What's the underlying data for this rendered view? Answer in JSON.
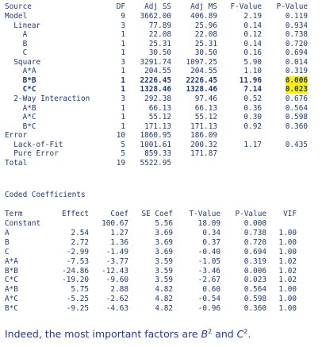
{
  "anova": {
    "headers": {
      "source": "Source",
      "df": "DF",
      "adj_ss": "Adj SS",
      "adj_ms": "Adj MS",
      "f_value": "F-Value",
      "p_value": "P-Value"
    },
    "rows": [
      {
        "source": "Model",
        "df": "9",
        "ss": "3662.00",
        "ms": "406.89",
        "f": "2.19",
        "p": "0.119"
      },
      {
        "source": "  Linear",
        "df": "3",
        "ss": "77.89",
        "ms": "25.96",
        "f": "0.14",
        "p": "0.934"
      },
      {
        "source": "    A",
        "df": "1",
        "ss": "22.08",
        "ms": "22.08",
        "f": "0.12",
        "p": "0.738"
      },
      {
        "source": "    B",
        "df": "1",
        "ss": "25.31",
        "ms": "25.31",
        "f": "0.14",
        "p": "0.720"
      },
      {
        "source": "    C",
        "df": "1",
        "ss": "30.50",
        "ms": "30.50",
        "f": "0.16",
        "p": "0.694"
      },
      {
        "source": "  Square",
        "df": "3",
        "ss": "3291.74",
        "ms": "1097.25",
        "f": "5.90",
        "p": "0.014"
      },
      {
        "source": "    A*A",
        "df": "1",
        "ss": "204.55",
        "ms": "204.55",
        "f": "1.10",
        "p": "0.319"
      },
      {
        "source": "    B*B",
        "df": "1",
        "ss": "2226.45",
        "ms": "2226.45",
        "f": "11.96",
        "p": "0.006"
      },
      {
        "source": "    C*C",
        "df": "1",
        "ss": "1328.46",
        "ms": "1328.46",
        "f": "7.14",
        "p": "0.023"
      },
      {
        "source": "  2-Way Interaction",
        "df": "3",
        "ss": "292.38",
        "ms": "97.46",
        "f": "0.52",
        "p": "0.676"
      },
      {
        "source": "    A*B",
        "df": "1",
        "ss": "66.13",
        "ms": "66.13",
        "f": "0.36",
        "p": "0.564"
      },
      {
        "source": "    A*C",
        "df": "1",
        "ss": "55.12",
        "ms": "55.12",
        "f": "0.30",
        "p": "0.598"
      },
      {
        "source": "    B*C",
        "df": "1",
        "ss": "171.13",
        "ms": "171.13",
        "f": "0.92",
        "p": "0.360"
      },
      {
        "source": "Error",
        "df": "10",
        "ss": "1860.95",
        "ms": "186.09",
        "f": "",
        "p": ""
      },
      {
        "source": "  Lack-of-Fit",
        "df": "5",
        "ss": "1001.61",
        "ms": "200.32",
        "f": "1.17",
        "p": "0.435"
      },
      {
        "source": "  Pure Error",
        "df": "5",
        "ss": "859.33",
        "ms": "171.87",
        "f": "",
        "p": ""
      },
      {
        "source": "Total",
        "df": "19",
        "ss": "5522.95",
        "ms": "",
        "f": "",
        "p": ""
      }
    ]
  },
  "coefficients": {
    "title": "Coded Coefficients",
    "headers": {
      "term": "Term",
      "effect": "Effect",
      "coef": "Coef",
      "se_coef": "SE Coef",
      "t_value": "T-Value",
      "p_value": "P-Value",
      "vif": "VIF"
    },
    "rows": [
      {
        "term": "Constant",
        "effect": "",
        "coef": "100.67",
        "se": "5.56",
        "t": "18.09",
        "p": "0.000",
        "vif": ""
      },
      {
        "term": "A",
        "effect": "2.54",
        "coef": "1.27",
        "se": "3.69",
        "t": "0.34",
        "p": "0.738",
        "vif": "1.00"
      },
      {
        "term": "B",
        "effect": "2.72",
        "coef": "1.36",
        "se": "3.69",
        "t": "0.37",
        "p": "0.720",
        "vif": "1.00"
      },
      {
        "term": "C",
        "effect": "-2.99",
        "coef": "-1.49",
        "se": "3.69",
        "t": "-0.40",
        "p": "0.694",
        "vif": "1.00"
      },
      {
        "term": "A*A",
        "effect": "-7.53",
        "coef": "-3.77",
        "se": "3.59",
        "t": "-1.05",
        "p": "0.319",
        "vif": "1.02"
      },
      {
        "term": "B*B",
        "effect": "-24.86",
        "coef": "-12.43",
        "se": "3.59",
        "t": "-3.46",
        "p": "0.006",
        "vif": "1.02"
      },
      {
        "term": "C*C",
        "effect": "-19.20",
        "coef": "-9.60",
        "se": "3.59",
        "t": "-2.67",
        "p": "0.023",
        "vif": "1.02"
      },
      {
        "term": "A*B",
        "effect": "5.75",
        "coef": "2.88",
        "se": "4.82",
        "t": "0.60",
        "p": "0.564",
        "vif": "1.00"
      },
      {
        "term": "A*C",
        "effect": "-5.25",
        "coef": "-2.62",
        "se": "4.82",
        "t": "-0.54",
        "p": "0.598",
        "vif": "1.00"
      },
      {
        "term": "B*C",
        "effect": "-9.25",
        "coef": "-4.63",
        "se": "4.82",
        "t": "-0.96",
        "p": "0.360",
        "vif": "1.00"
      }
    ]
  },
  "caption": {
    "prefix": "Indeed, the most important factors are ",
    "term1": "B",
    "sup1": "2",
    "middle": " and ",
    "term2": "C",
    "sup2": "2",
    "suffix": "."
  },
  "colors": {
    "text": "#1f3a7a",
    "highlight": "#fff200",
    "caption": "#1f3a9e"
  }
}
